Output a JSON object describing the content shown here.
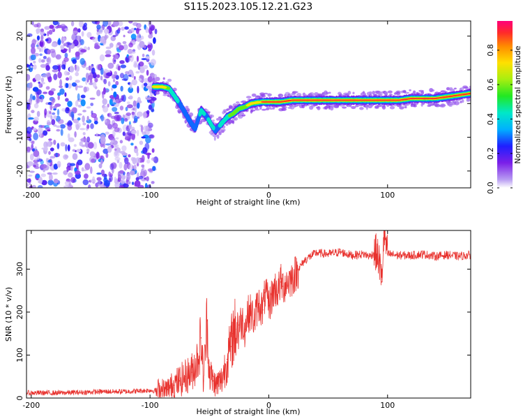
{
  "figure_title": "S115.2023.105.12.21.G23",
  "chart_data": [
    {
      "type": "heatmap",
      "title": "",
      "xlabel": "Height of straight line (km)",
      "ylabel": "Frequency (Hz)",
      "xlim": [
        -204,
        170
      ],
      "ylim": [
        -25,
        24.5
      ],
      "xticks": [
        -200,
        -100,
        0,
        100
      ],
      "yticks": [
        -20,
        -10,
        0,
        10,
        20
      ],
      "noise_region_x": [
        -204,
        -95
      ],
      "ridge": {
        "x": [
          -97,
          -90,
          -84,
          -79,
          -75,
          -70,
          -66,
          -62,
          -57,
          -52,
          -48,
          -45,
          -40,
          -35,
          -30,
          -25,
          -20,
          -15,
          -10,
          -5,
          0,
          10,
          20,
          30,
          40,
          50,
          60,
          70,
          80,
          90,
          100,
          110,
          120,
          130,
          140,
          150,
          160,
          170
        ],
        "y": [
          5,
          5,
          4.5,
          2,
          0,
          -3,
          -5.5,
          -7.5,
          -2,
          -4,
          -6.5,
          -8,
          -6,
          -4,
          -3,
          -1.5,
          -1,
          0,
          0.3,
          0.5,
          0.5,
          0.5,
          1,
          1,
          1,
          1,
          1,
          1,
          1,
          1,
          1,
          1,
          1.5,
          1.5,
          1.5,
          2,
          2.5,
          3
        ],
        "amplitude": [
          0.7,
          0.8,
          0.5,
          0.4,
          0.35,
          0.3,
          0.35,
          0.3,
          0.4,
          0.35,
          0.45,
          0.3,
          0.4,
          0.5,
          0.55,
          0.6,
          0.65,
          0.7,
          0.75,
          0.85,
          0.9,
          0.85,
          0.9,
          0.85,
          0.88,
          0.9,
          0.85,
          0.88,
          0.9,
          0.85,
          0.85,
          0.88,
          0.9,
          0.92,
          0.9,
          0.85,
          0.9,
          0.88
        ]
      },
      "colorbar": {
        "label": "Normalized spectral amplitude",
        "range": [
          0,
          0.97
        ],
        "ticks": [
          0.0,
          0.2,
          0.4,
          0.6,
          0.8
        ]
      }
    },
    {
      "type": "line",
      "title": "",
      "xlabel": "Height of straight line (km)",
      "ylabel": "SNR (10 * v/v)",
      "xlim": [
        -204,
        170
      ],
      "ylim": [
        0,
        390
      ],
      "xticks": [
        -200,
        -100,
        0,
        100
      ],
      "yticks": [
        0,
        100,
        200,
        300
      ],
      "series": [
        {
          "name": "SNR",
          "color": "#e8322e",
          "x": [
            -204,
            -180,
            -160,
            -140,
            -120,
            -100,
            -90,
            -85,
            -80,
            -75,
            -70,
            -65,
            -60,
            -57,
            -55,
            -52,
            -50,
            -47,
            -45,
            -40,
            -35,
            -32,
            -30,
            -28,
            -25,
            -22,
            -20,
            -18,
            -15,
            -12,
            -10,
            -8,
            -5,
            -3,
            0,
            3,
            5,
            8,
            10,
            12,
            15,
            20,
            25,
            30,
            35,
            40,
            50,
            60,
            70,
            80,
            85,
            90,
            93,
            95,
            97,
            100,
            110,
            120,
            130,
            140,
            150,
            160,
            170
          ],
          "y": [
            12,
            12,
            13,
            15,
            15,
            18,
            16,
            20,
            30,
            40,
            50,
            60,
            90,
            140,
            40,
            180,
            60,
            40,
            30,
            40,
            90,
            120,
            150,
            160,
            170,
            180,
            160,
            195,
            200,
            180,
            210,
            220,
            205,
            245,
            215,
            240,
            255,
            250,
            270,
            260,
            270,
            280,
            300,
            320,
            330,
            338,
            335,
            340,
            332,
            335,
            330,
            340,
            320,
            270,
            385,
            335,
            332,
            332,
            335,
            330,
            333,
            330,
            333
          ]
        }
      ]
    }
  ]
}
